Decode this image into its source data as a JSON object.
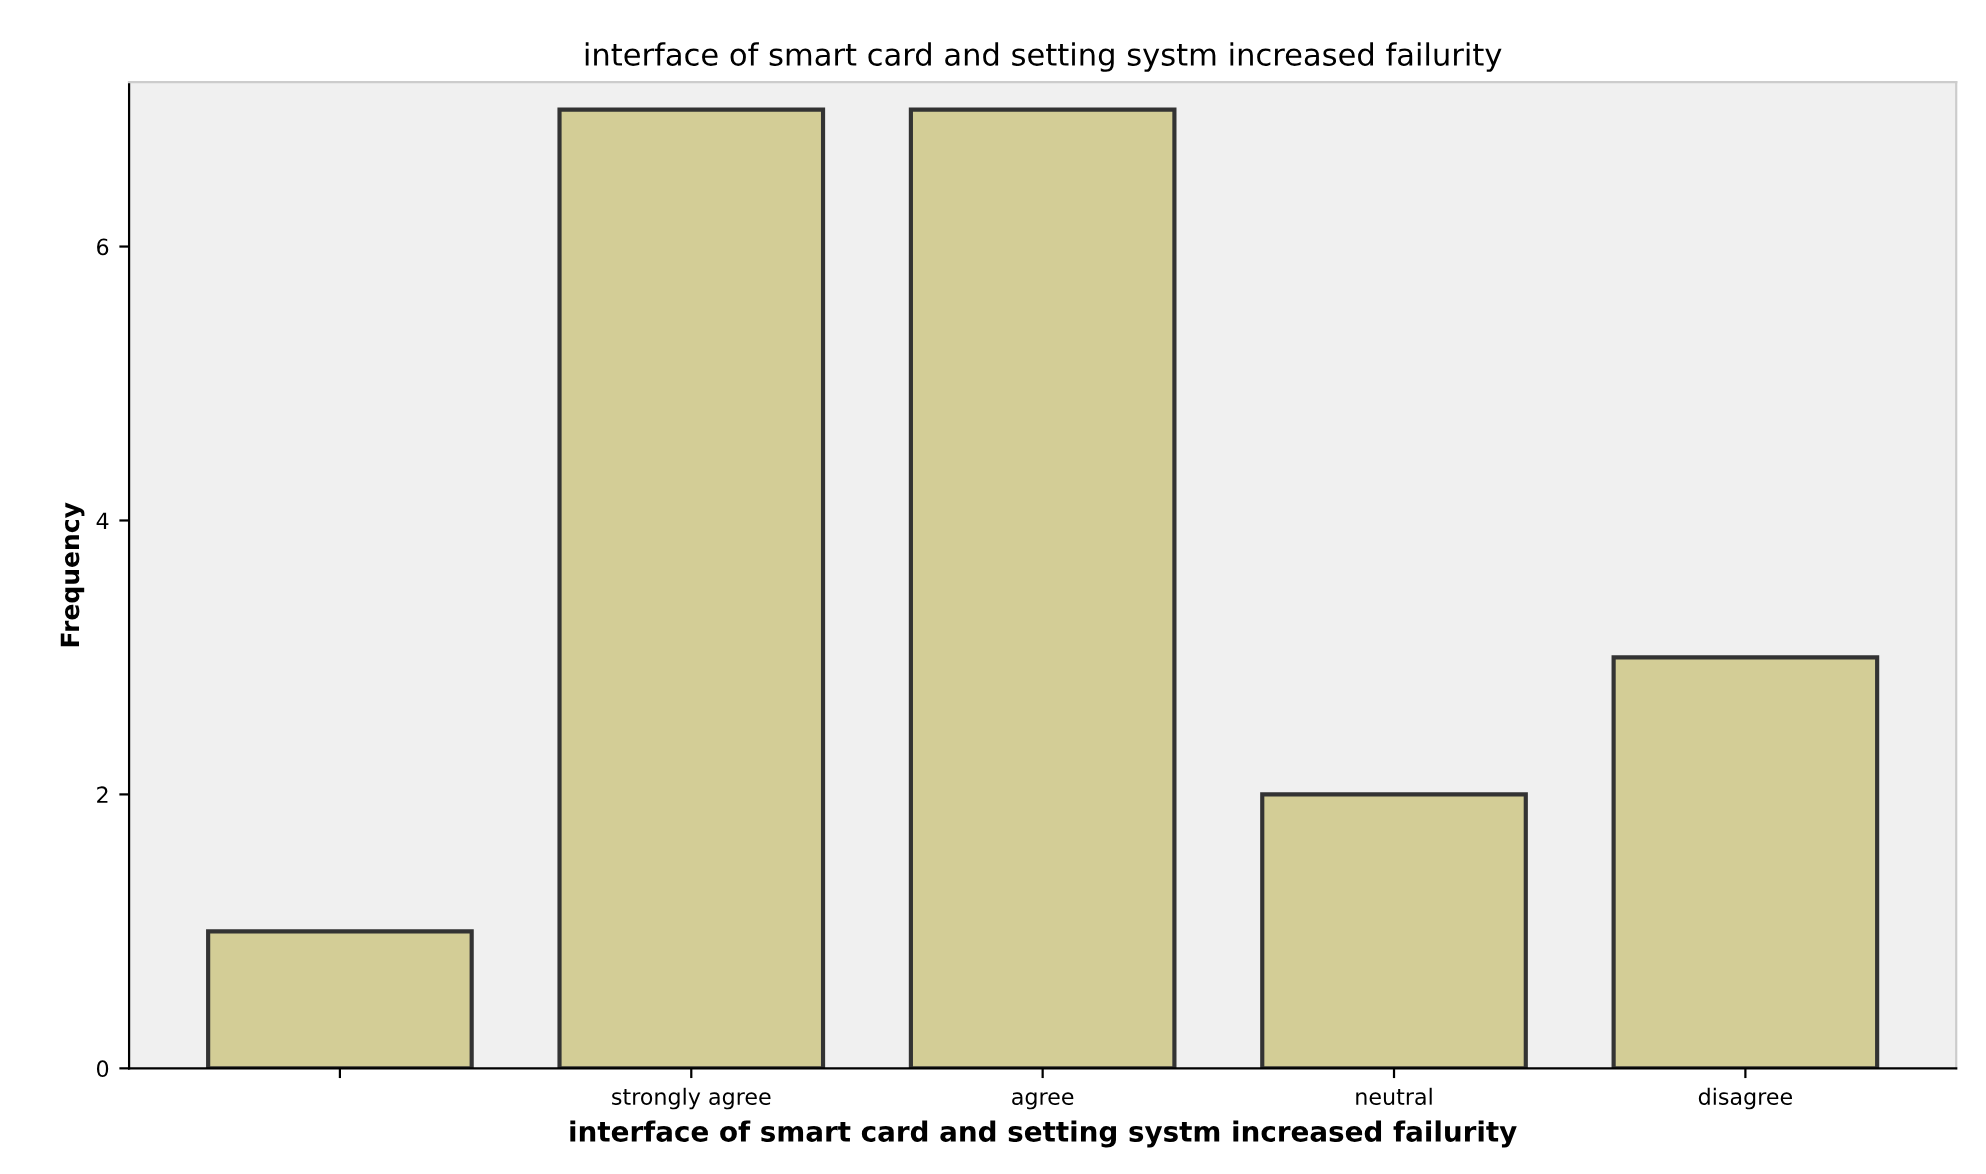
{
  "chart_data": {
    "type": "bar",
    "title": "interface of smart card and setting systm increased failurity",
    "xlabel": "interface of smart card and setting systm increased failurity",
    "ylabel": "Frequency",
    "categories": [
      null,
      "strongly agree",
      "agree",
      "neutral",
      "disagree"
    ],
    "values": [
      1,
      7,
      7,
      2,
      3
    ],
    "color": "#d3cd96",
    "ylim": [
      0,
      7.2
    ],
    "yticks": [
      0,
      2,
      4,
      6
    ],
    "grid": false
  }
}
